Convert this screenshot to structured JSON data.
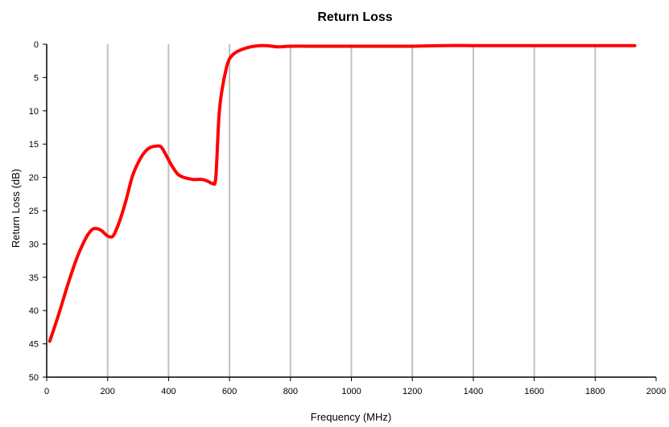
{
  "chart_data": {
    "type": "line",
    "title": "Return Loss",
    "xlabel": "Frequency (MHz)",
    "ylabel": "Return Loss (dB)",
    "xlim": [
      0,
      2000
    ],
    "ylim": [
      0,
      50
    ],
    "y_inverted": true,
    "x_ticks": [
      0,
      200,
      400,
      600,
      800,
      1000,
      1200,
      1400,
      1600,
      1800,
      2000
    ],
    "y_ticks": [
      0,
      5,
      10,
      15,
      20,
      25,
      30,
      35,
      40,
      45,
      50
    ],
    "x_tick_labels": [
      "0",
      "200",
      "400",
      "600",
      "800",
      "1000",
      "1200",
      "1400",
      "1600",
      "1800",
      "2000"
    ],
    "y_tick_labels": [
      "0",
      "5",
      "10",
      "15",
      "20",
      "25",
      "30",
      "35",
      "40",
      "45",
      "50"
    ],
    "grid": "vertical",
    "legend": "none",
    "series": [
      {
        "color": "#ff0000",
        "x": [
          10,
          40,
          70,
          100,
          130,
          150,
          165,
          180,
          200,
          215,
          225,
          240,
          260,
          280,
          300,
          320,
          340,
          360,
          375,
          390,
          410,
          430,
          450,
          480,
          510,
          530,
          545,
          555,
          565,
          575,
          590,
          600,
          615,
          640,
          680,
          720,
          760,
          800,
          900,
          1000,
          1100,
          1200,
          1300,
          1400,
          1500,
          1600,
          1700,
          1800,
          1930
        ],
        "y": [
          44.6,
          40.5,
          36.0,
          32.0,
          29.0,
          27.8,
          27.7,
          28.0,
          28.8,
          28.9,
          28.2,
          26.5,
          23.5,
          20.0,
          17.8,
          16.3,
          15.5,
          15.3,
          15.4,
          16.5,
          18.2,
          19.5,
          20.0,
          20.3,
          20.3,
          20.6,
          20.9,
          20.0,
          11.0,
          7.0,
          3.5,
          2.2,
          1.4,
          0.8,
          0.3,
          0.2,
          0.4,
          0.3,
          0.3,
          0.3,
          0.3,
          0.3,
          0.2,
          0.2,
          0.2,
          0.2,
          0.2,
          0.2,
          0.2
        ]
      }
    ]
  }
}
